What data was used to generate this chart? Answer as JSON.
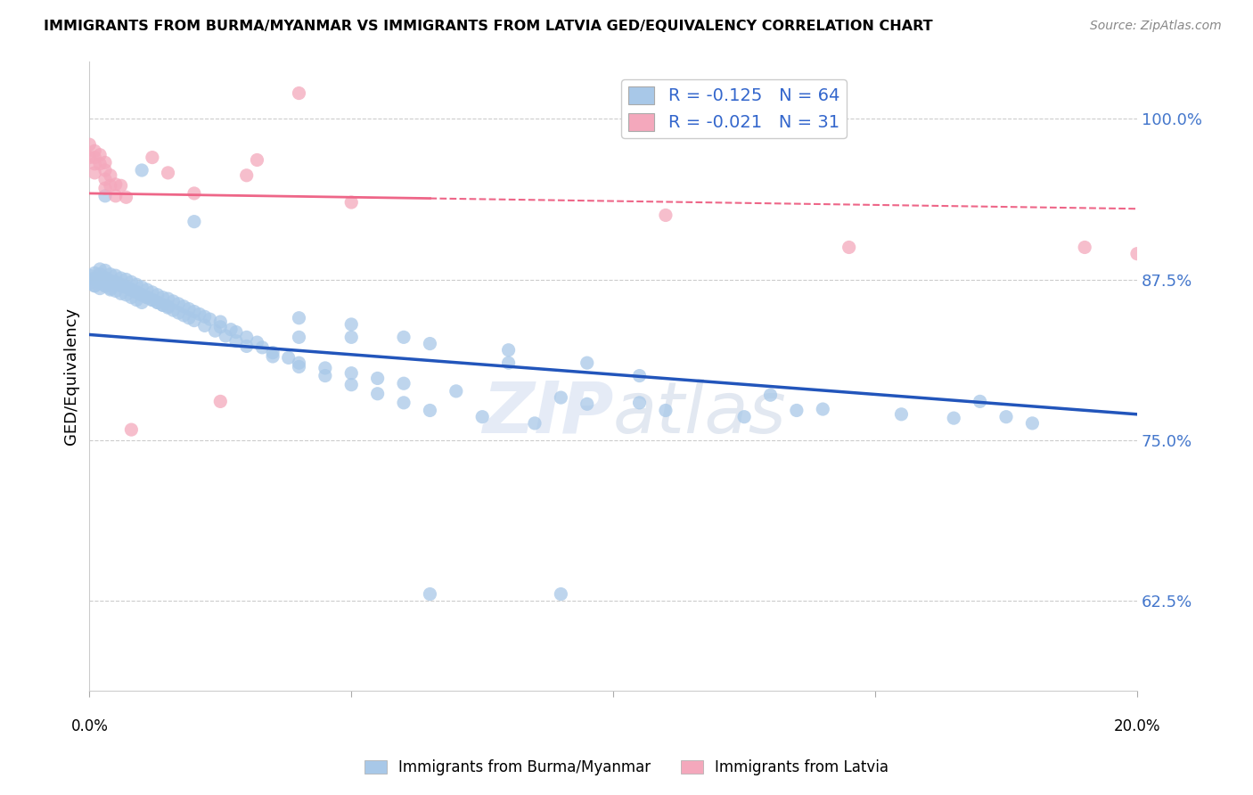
{
  "title": "IMMIGRANTS FROM BURMA/MYANMAR VS IMMIGRANTS FROM LATVIA GED/EQUIVALENCY CORRELATION CHART",
  "source": "Source: ZipAtlas.com",
  "ylabel": "GED/Equivalency",
  "ytick_labels": [
    "62.5%",
    "75.0%",
    "87.5%",
    "100.0%"
  ],
  "ytick_values": [
    0.625,
    0.75,
    0.875,
    1.0
  ],
  "xlim": [
    0.0,
    0.2
  ],
  "ylim": [
    0.555,
    1.045
  ],
  "legend_blue_r": "-0.125",
  "legend_blue_n": "64",
  "legend_pink_r": "-0.021",
  "legend_pink_n": "31",
  "legend_label_blue": "Immigrants from Burma/Myanmar",
  "legend_label_pink": "Immigrants from Latvia",
  "blue_color": "#A8C8E8",
  "pink_color": "#F4A8BC",
  "trendline_blue_color": "#2255BB",
  "trendline_pink_color": "#EE6688",
  "watermark_zip": "ZIP",
  "watermark_atlas": "atlas",
  "trendline_blue_x0": 0.0,
  "trendline_blue_x1": 0.2,
  "trendline_blue_y0": 0.832,
  "trendline_blue_y1": 0.77,
  "trendline_pink_solid_x0": 0.0,
  "trendline_pink_solid_x1": 0.065,
  "trendline_pink_y0": 0.942,
  "trendline_pink_y1": 0.938,
  "trendline_pink_dash_x0": 0.065,
  "trendline_pink_dash_x1": 0.2,
  "trendline_pink_y_at_065": 0.938,
  "trendline_pink_y1_full": 0.93,
  "blue_x": [
    0.001,
    0.001,
    0.001,
    0.002,
    0.002,
    0.002,
    0.003,
    0.003,
    0.003,
    0.004,
    0.004,
    0.004,
    0.005,
    0.005,
    0.005,
    0.006,
    0.006,
    0.006,
    0.007,
    0.007,
    0.007,
    0.008,
    0.008,
    0.008,
    0.009,
    0.009,
    0.009,
    0.01,
    0.01,
    0.01,
    0.011,
    0.011,
    0.012,
    0.012,
    0.013,
    0.013,
    0.014,
    0.014,
    0.015,
    0.015,
    0.016,
    0.017,
    0.018,
    0.019,
    0.02,
    0.021,
    0.022,
    0.023,
    0.025,
    0.025,
    0.027,
    0.028,
    0.03,
    0.032,
    0.033,
    0.035,
    0.038,
    0.04,
    0.045,
    0.05,
    0.055,
    0.06,
    0.07,
    0.09,
    0.105,
    0.135,
    0.175
  ],
  "blue_y": [
    0.88,
    0.875,
    0.87,
    0.883,
    0.875,
    0.868,
    0.882,
    0.876,
    0.87,
    0.879,
    0.873,
    0.867,
    0.878,
    0.872,
    0.866,
    0.876,
    0.87,
    0.864,
    0.875,
    0.869,
    0.863,
    0.873,
    0.867,
    0.861,
    0.871,
    0.865,
    0.859,
    0.869,
    0.863,
    0.857,
    0.867,
    0.861,
    0.865,
    0.859,
    0.863,
    0.857,
    0.861,
    0.855,
    0.86,
    0.854,
    0.858,
    0.856,
    0.854,
    0.852,
    0.85,
    0.848,
    0.846,
    0.844,
    0.842,
    0.838,
    0.836,
    0.834,
    0.83,
    0.826,
    0.822,
    0.818,
    0.814,
    0.81,
    0.806,
    0.802,
    0.798,
    0.794,
    0.788,
    0.783,
    0.779,
    0.773,
    0.768
  ],
  "blue_x_extra": [
    0.0,
    0.0,
    0.001,
    0.001,
    0.002,
    0.002,
    0.003,
    0.003,
    0.004,
    0.004,
    0.005,
    0.006,
    0.007,
    0.008,
    0.009,
    0.01,
    0.011,
    0.012,
    0.013,
    0.014,
    0.015,
    0.016,
    0.017,
    0.018,
    0.019,
    0.02,
    0.022,
    0.024,
    0.026,
    0.028,
    0.03,
    0.035,
    0.04,
    0.045,
    0.05,
    0.055,
    0.06,
    0.065,
    0.075,
    0.085,
    0.095,
    0.11,
    0.125,
    0.14,
    0.155,
    0.165,
    0.18
  ],
  "blue_y_extra": [
    0.878,
    0.872,
    0.876,
    0.87,
    0.879,
    0.873,
    0.876,
    0.87,
    0.874,
    0.868,
    0.873,
    0.871,
    0.869,
    0.867,
    0.865,
    0.863,
    0.861,
    0.859,
    0.857,
    0.855,
    0.853,
    0.851,
    0.849,
    0.847,
    0.845,
    0.843,
    0.839,
    0.835,
    0.831,
    0.827,
    0.823,
    0.815,
    0.807,
    0.8,
    0.793,
    0.786,
    0.779,
    0.773,
    0.768,
    0.763,
    0.778,
    0.773,
    0.768,
    0.774,
    0.77,
    0.767,
    0.763
  ],
  "blue_special": [
    [
      0.003,
      0.94
    ],
    [
      0.01,
      0.96
    ],
    [
      0.02,
      0.92
    ],
    [
      0.04,
      0.845
    ],
    [
      0.04,
      0.83
    ],
    [
      0.05,
      0.84
    ],
    [
      0.05,
      0.83
    ],
    [
      0.06,
      0.83
    ],
    [
      0.065,
      0.825
    ],
    [
      0.08,
      0.82
    ],
    [
      0.08,
      0.81
    ],
    [
      0.095,
      0.81
    ],
    [
      0.105,
      0.8
    ],
    [
      0.13,
      0.785
    ],
    [
      0.065,
      0.63
    ],
    [
      0.09,
      0.63
    ],
    [
      0.17,
      0.78
    ]
  ],
  "pink_x": [
    0.0,
    0.0,
    0.001,
    0.001,
    0.001,
    0.001,
    0.002,
    0.002,
    0.003,
    0.003,
    0.003,
    0.003,
    0.004,
    0.004,
    0.005,
    0.005,
    0.006,
    0.007,
    0.008,
    0.012,
    0.015,
    0.025,
    0.032,
    0.04,
    0.11,
    0.145,
    0.02,
    0.03,
    0.05,
    0.19,
    0.2
  ],
  "pink_y": [
    0.98,
    0.97,
    0.975,
    0.97,
    0.965,
    0.958,
    0.972,
    0.965,
    0.966,
    0.96,
    0.953,
    0.946,
    0.956,
    0.948,
    0.949,
    0.94,
    0.948,
    0.939,
    0.758,
    0.97,
    0.958,
    0.78,
    0.968,
    1.02,
    0.925,
    0.9,
    0.942,
    0.956,
    0.935,
    0.9,
    0.895
  ]
}
